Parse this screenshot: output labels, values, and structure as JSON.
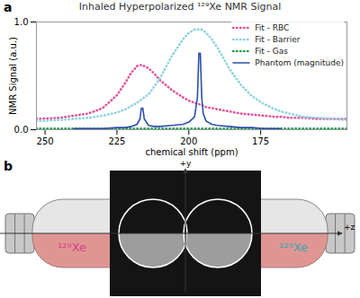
{
  "chart_data": {
    "type": "line",
    "title": "Inhaled Hyperpolarized ¹²⁹Xe NMR Signal",
    "annotations": [
      "a"
    ],
    "x_label": "chemical shift (ppm)",
    "y_label": "NMR Signal (a.u.)",
    "x": [
      253,
      245,
      240,
      235,
      230,
      225,
      222,
      220,
      218,
      217,
      216.5,
      216,
      215.5,
      214,
      212,
      210,
      206,
      202,
      200,
      198,
      197,
      196.5,
      196,
      195.5,
      195,
      194,
      192,
      190,
      186,
      182,
      178,
      174,
      170,
      168,
      165,
      160,
      155,
      150,
      145
    ],
    "series": [
      {
        "name": "Fit - RBC",
        "color": "#e0559e",
        "line_style": "dotted",
        "values": [
          0.1,
          0.11,
          0.13,
          0.15,
          0.2,
          0.32,
          0.44,
          0.53,
          0.59,
          0.6,
          0.6,
          0.6,
          0.59,
          0.57,
          0.52,
          0.46,
          0.37,
          0.3,
          0.27,
          0.25,
          0.24,
          0.24,
          0.23,
          0.23,
          0.22,
          0.21,
          0.2,
          0.19,
          0.17,
          0.15,
          0.14,
          0.13,
          0.12,
          0.12,
          0.11,
          0.11,
          0.1,
          0.1,
          0.1
        ]
      },
      {
        "name": "Fit - Barrier",
        "color": "#8fd3e0",
        "line_style": "dotted",
        "values": [
          0.08,
          0.09,
          0.1,
          0.11,
          0.13,
          0.16,
          0.19,
          0.22,
          0.25,
          0.27,
          0.28,
          0.29,
          0.3,
          0.33,
          0.4,
          0.48,
          0.68,
          0.84,
          0.9,
          0.93,
          0.93,
          0.93,
          0.93,
          0.93,
          0.92,
          0.9,
          0.84,
          0.76,
          0.57,
          0.42,
          0.31,
          0.24,
          0.19,
          0.17,
          0.15,
          0.12,
          0.11,
          0.1,
          0.09
        ]
      },
      {
        "name": "Fit - Gas",
        "color": "#2e9e5a",
        "line_style": "dotted",
        "values": [
          0.01,
          0.01,
          0.01,
          0.01,
          0.01,
          0.01,
          0.01,
          0.01,
          0.01,
          0.01,
          0.01,
          0.01,
          0.01,
          0.01,
          0.01,
          0.01,
          0.01,
          0.01,
          0.01,
          0.01,
          0.01,
          0.01,
          0.01,
          0.01,
          0.01,
          0.01,
          0.01,
          0.01,
          0.01,
          0.01,
          0.01,
          0.01,
          0.01,
          0.01,
          0.01,
          0.01,
          0.01,
          0.01,
          0.01
        ]
      },
      {
        "name": "Phantom (magnitude)",
        "color": "#2c4fa8",
        "line_style": "solid",
        "values": [
          null,
          null,
          0.01,
          0.01,
          0.01,
          0.02,
          0.02,
          0.03,
          0.05,
          0.1,
          0.2,
          0.2,
          0.1,
          0.04,
          0.03,
          0.03,
          0.04,
          0.05,
          0.07,
          0.12,
          0.3,
          0.71,
          0.71,
          0.3,
          0.15,
          0.08,
          0.05,
          0.04,
          0.03,
          0.02,
          0.02,
          0.01,
          0.01,
          0.01,
          null,
          null,
          null,
          null,
          null
        ]
      }
    ],
    "xlim": [
      253,
      145
    ],
    "xticks": [
      250,
      225,
      200,
      175
    ],
    "ylim": [
      0,
      1
    ],
    "yticks": [
      0,
      1
    ],
    "grid": false,
    "legend": "top-right"
  },
  "diagram": {
    "label": "b",
    "axis_labels": [
      "+y",
      "+z"
    ],
    "labels": [
      "¹²⁹Xe",
      "¹²⁹Xe"
    ]
  }
}
